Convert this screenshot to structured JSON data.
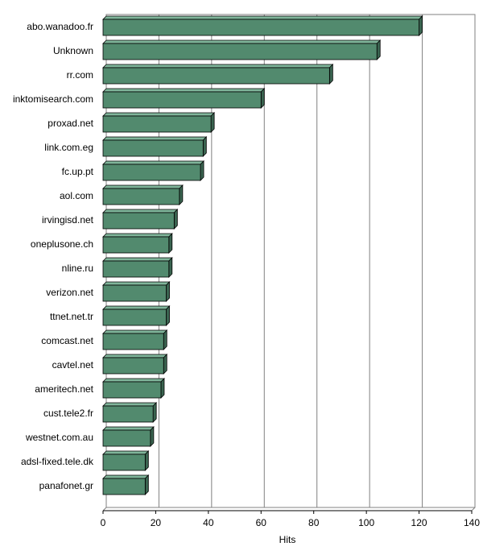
{
  "chart_data": {
    "type": "bar",
    "orientation": "horizontal",
    "x_label": "Hits",
    "categories": [
      "abo.wanadoo.fr",
      "Unknown",
      "rr.com",
      "inktomisearch.com",
      "proxad.net",
      "link.com.eg",
      "fc.up.pt",
      "aol.com",
      "irvingisd.net",
      "oneplusone.ch",
      "nline.ru",
      "verizon.net",
      "ttnet.net.tr",
      "comcast.net",
      "cavtel.net",
      "ameritech.net",
      "cust.tele2.fr",
      "westnet.com.au",
      "adsl-fixed.tele.dk",
      "panafonet.gr"
    ],
    "values": [
      120,
      104,
      86,
      60,
      41,
      38,
      37,
      29,
      27,
      25,
      25,
      24,
      24,
      23,
      23,
      22,
      19,
      18,
      16,
      16
    ],
    "color": "#528a6e",
    "xlim": [
      0,
      140
    ],
    "xticks": [
      0,
      20,
      40,
      60,
      80,
      100,
      120,
      140
    ],
    "grid": true
  }
}
